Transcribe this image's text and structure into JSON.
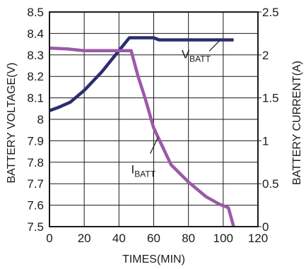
{
  "chart_data": {
    "type": "line",
    "xlabel": "TIMES(MIN)",
    "ylabel_left": "BATTERY VOLTAGE(V)",
    "ylabel_right": "BATTERY CURRENT(A)",
    "xlim": [
      0,
      120
    ],
    "ylim_left": [
      7.5,
      8.5
    ],
    "ylim_right": [
      0,
      2.5
    ],
    "x_ticks": [
      "0",
      "20",
      "40",
      "60",
      "80",
      "100",
      "120"
    ],
    "y_left_ticks": [
      "7.5",
      "7.6",
      "7.7",
      "7.8",
      "7.9",
      "8",
      "8.1",
      "8.2",
      "8.3",
      "8.4",
      "8.5"
    ],
    "y_right_ticks": [
      "0",
      "0.5",
      "1",
      "1.5",
      "2",
      "2.5"
    ],
    "grid": true,
    "series": [
      {
        "name": "VBATT",
        "axis": "left",
        "color": "#2b2d6e",
        "points": [
          [
            0,
            8.04
          ],
          [
            5,
            8.055
          ],
          [
            12,
            8.08
          ],
          [
            20,
            8.135
          ],
          [
            30,
            8.22
          ],
          [
            40,
            8.32
          ],
          [
            46,
            8.38
          ],
          [
            50,
            8.38
          ],
          [
            60,
            8.38
          ],
          [
            63,
            8.37
          ],
          [
            80,
            8.37
          ],
          [
            100,
            8.37
          ],
          [
            106,
            8.37
          ]
        ]
      },
      {
        "name": "IBATT",
        "axis": "right",
        "color": "#9b59a8",
        "points": [
          [
            0,
            2.08
          ],
          [
            10,
            2.07
          ],
          [
            20,
            2.05
          ],
          [
            30,
            2.05
          ],
          [
            40,
            2.05
          ],
          [
            47,
            2.05
          ],
          [
            51,
            1.75
          ],
          [
            55,
            1.5
          ],
          [
            60,
            1.15
          ],
          [
            63,
            1.02
          ],
          [
            70,
            0.72
          ],
          [
            80,
            0.52
          ],
          [
            90,
            0.35
          ],
          [
            98,
            0.26
          ],
          [
            103,
            0.22
          ],
          [
            106,
            0.0
          ]
        ]
      }
    ],
    "annotations": [
      {
        "base": "V",
        "sub": "BATT"
      },
      {
        "base": "I",
        "sub": "BATT"
      }
    ]
  }
}
